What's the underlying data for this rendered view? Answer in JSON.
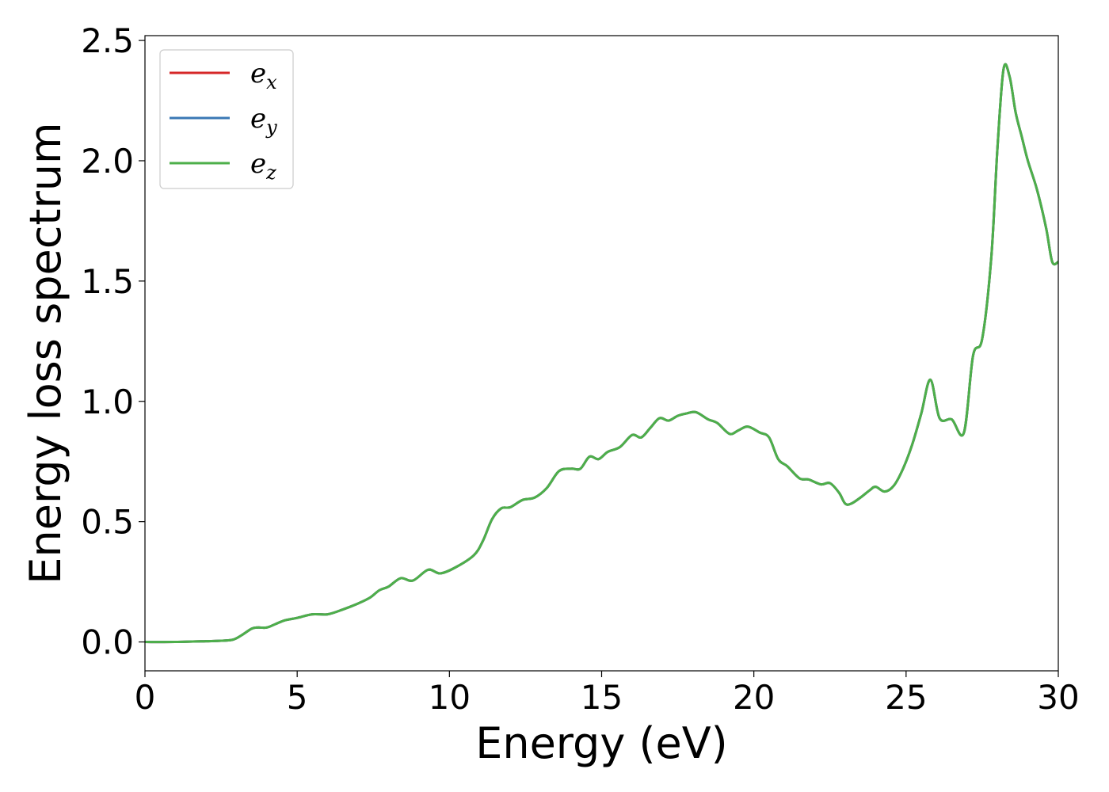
{
  "chart_data": {
    "type": "line",
    "xlabel": "Energy (eV)",
    "ylabel": "Energy loss spectrum",
    "xlim": [
      0,
      30
    ],
    "ylim": [
      -0.12,
      2.52
    ],
    "xticks": [
      0,
      5,
      10,
      15,
      20,
      25,
      30
    ],
    "xtick_labels": [
      "0",
      "5",
      "10",
      "15",
      "20",
      "25",
      "30"
    ],
    "yticks": [
      0.0,
      0.5,
      1.0,
      1.5,
      2.0,
      2.5
    ],
    "ytick_labels": [
      "0.0",
      "0.5",
      "1.0",
      "1.5",
      "2.0",
      "2.5"
    ],
    "grid": false,
    "legend_position": "top-left",
    "series": [
      {
        "name": "e",
        "sub": "x",
        "color": "#d62728",
        "x": [
          0,
          1,
          2,
          2.5,
          2.9,
          3.2,
          3.5,
          3.7,
          4.0,
          4.3,
          4.6,
          5.0,
          5.5,
          6.0,
          6.5,
          7.0,
          7.4,
          7.7,
          8.0,
          8.4,
          8.8,
          9.3,
          9.7,
          10.2,
          10.8,
          11.1,
          11.4,
          11.7,
          12.0,
          12.4,
          12.8,
          13.2,
          13.6,
          14.0,
          14.3,
          14.6,
          14.9,
          15.2,
          15.6,
          16.0,
          16.3,
          16.6,
          16.9,
          17.2,
          17.5,
          17.8,
          18.1,
          18.5,
          18.8,
          19.2,
          19.5,
          19.8,
          20.2,
          20.5,
          20.8,
          21.1,
          21.5,
          21.8,
          22.2,
          22.5,
          22.8,
          23.0,
          23.2,
          23.5,
          23.8,
          24.0,
          24.3,
          24.6,
          24.9,
          25.2,
          25.5,
          25.8,
          26.1,
          26.5,
          26.9,
          27.2,
          27.5,
          27.8,
          28.0,
          28.2,
          28.4,
          28.6,
          28.8,
          29.0,
          29.3,
          29.6,
          29.8,
          30.0
        ],
        "values": [
          0.0,
          0.0,
          0.003,
          0.005,
          0.01,
          0.03,
          0.055,
          0.06,
          0.06,
          0.075,
          0.09,
          0.1,
          0.115,
          0.115,
          0.135,
          0.16,
          0.185,
          0.215,
          0.23,
          0.265,
          0.255,
          0.3,
          0.285,
          0.31,
          0.36,
          0.42,
          0.51,
          0.555,
          0.56,
          0.59,
          0.6,
          0.64,
          0.71,
          0.72,
          0.72,
          0.77,
          0.76,
          0.79,
          0.81,
          0.86,
          0.85,
          0.89,
          0.93,
          0.92,
          0.94,
          0.95,
          0.955,
          0.925,
          0.91,
          0.865,
          0.88,
          0.895,
          0.87,
          0.85,
          0.76,
          0.73,
          0.68,
          0.675,
          0.655,
          0.66,
          0.62,
          0.575,
          0.575,
          0.6,
          0.63,
          0.645,
          0.625,
          0.65,
          0.72,
          0.82,
          0.95,
          1.09,
          0.93,
          0.925,
          0.87,
          1.19,
          1.26,
          1.6,
          2.05,
          2.38,
          2.35,
          2.2,
          2.1,
          2.0,
          1.88,
          1.72,
          1.58,
          1.58
        ]
      },
      {
        "name": "e",
        "sub": "y",
        "color": "#3a78b5",
        "x": [
          0,
          1,
          2,
          2.5,
          2.9,
          3.2,
          3.5,
          3.7,
          4.0,
          4.3,
          4.6,
          5.0,
          5.5,
          6.0,
          6.5,
          7.0,
          7.4,
          7.7,
          8.0,
          8.4,
          8.8,
          9.3,
          9.7,
          10.2,
          10.8,
          11.1,
          11.4,
          11.7,
          12.0,
          12.4,
          12.8,
          13.2,
          13.6,
          14.0,
          14.3,
          14.6,
          14.9,
          15.2,
          15.6,
          16.0,
          16.3,
          16.6,
          16.9,
          17.2,
          17.5,
          17.8,
          18.1,
          18.5,
          18.8,
          19.2,
          19.5,
          19.8,
          20.2,
          20.5,
          20.8,
          21.1,
          21.5,
          21.8,
          22.2,
          22.5,
          22.8,
          23.0,
          23.2,
          23.5,
          23.8,
          24.0,
          24.3,
          24.6,
          24.9,
          25.2,
          25.5,
          25.8,
          26.1,
          26.5,
          26.9,
          27.2,
          27.5,
          27.8,
          28.0,
          28.2,
          28.4,
          28.6,
          28.8,
          29.0,
          29.3,
          29.6,
          29.8,
          30.0
        ],
        "values": [
          0.0,
          0.0,
          0.003,
          0.005,
          0.01,
          0.03,
          0.055,
          0.06,
          0.06,
          0.075,
          0.09,
          0.1,
          0.115,
          0.115,
          0.135,
          0.16,
          0.185,
          0.215,
          0.23,
          0.265,
          0.255,
          0.3,
          0.285,
          0.31,
          0.36,
          0.42,
          0.51,
          0.555,
          0.56,
          0.59,
          0.6,
          0.64,
          0.71,
          0.72,
          0.72,
          0.77,
          0.76,
          0.79,
          0.81,
          0.86,
          0.85,
          0.89,
          0.93,
          0.92,
          0.94,
          0.95,
          0.955,
          0.925,
          0.91,
          0.865,
          0.88,
          0.895,
          0.87,
          0.85,
          0.76,
          0.73,
          0.68,
          0.675,
          0.655,
          0.66,
          0.62,
          0.575,
          0.575,
          0.6,
          0.63,
          0.645,
          0.625,
          0.65,
          0.72,
          0.82,
          0.95,
          1.09,
          0.93,
          0.925,
          0.87,
          1.19,
          1.26,
          1.6,
          2.05,
          2.38,
          2.35,
          2.2,
          2.1,
          2.0,
          1.88,
          1.72,
          1.58,
          1.58
        ]
      },
      {
        "name": "e",
        "sub": "z",
        "color": "#4daf4a",
        "x": [
          0,
          1,
          2,
          2.5,
          2.9,
          3.2,
          3.5,
          3.7,
          4.0,
          4.3,
          4.6,
          5.0,
          5.5,
          6.0,
          6.5,
          7.0,
          7.4,
          7.7,
          8.0,
          8.4,
          8.8,
          9.3,
          9.7,
          10.2,
          10.8,
          11.1,
          11.4,
          11.7,
          12.0,
          12.4,
          12.8,
          13.2,
          13.6,
          14.0,
          14.3,
          14.6,
          14.9,
          15.2,
          15.6,
          16.0,
          16.3,
          16.6,
          16.9,
          17.2,
          17.5,
          17.8,
          18.1,
          18.5,
          18.8,
          19.2,
          19.5,
          19.8,
          20.2,
          20.5,
          20.8,
          21.1,
          21.5,
          21.8,
          22.2,
          22.5,
          22.8,
          23.0,
          23.2,
          23.5,
          23.8,
          24.0,
          24.3,
          24.6,
          24.9,
          25.2,
          25.5,
          25.8,
          26.1,
          26.5,
          26.9,
          27.2,
          27.5,
          27.8,
          28.0,
          28.2,
          28.4,
          28.6,
          28.8,
          29.0,
          29.3,
          29.6,
          29.8,
          30.0
        ],
        "values": [
          0.0,
          0.0,
          0.003,
          0.005,
          0.01,
          0.03,
          0.055,
          0.06,
          0.06,
          0.075,
          0.09,
          0.1,
          0.115,
          0.115,
          0.135,
          0.16,
          0.185,
          0.215,
          0.23,
          0.265,
          0.255,
          0.3,
          0.285,
          0.31,
          0.36,
          0.42,
          0.51,
          0.555,
          0.56,
          0.59,
          0.6,
          0.64,
          0.71,
          0.72,
          0.72,
          0.77,
          0.76,
          0.79,
          0.81,
          0.86,
          0.85,
          0.89,
          0.93,
          0.92,
          0.94,
          0.95,
          0.955,
          0.925,
          0.91,
          0.865,
          0.88,
          0.895,
          0.87,
          0.85,
          0.76,
          0.73,
          0.68,
          0.675,
          0.655,
          0.66,
          0.62,
          0.575,
          0.575,
          0.6,
          0.63,
          0.645,
          0.625,
          0.65,
          0.72,
          0.82,
          0.95,
          1.09,
          0.93,
          0.925,
          0.87,
          1.19,
          1.26,
          1.6,
          2.05,
          2.38,
          2.35,
          2.2,
          2.1,
          2.0,
          1.88,
          1.72,
          1.58,
          1.58
        ]
      }
    ]
  }
}
